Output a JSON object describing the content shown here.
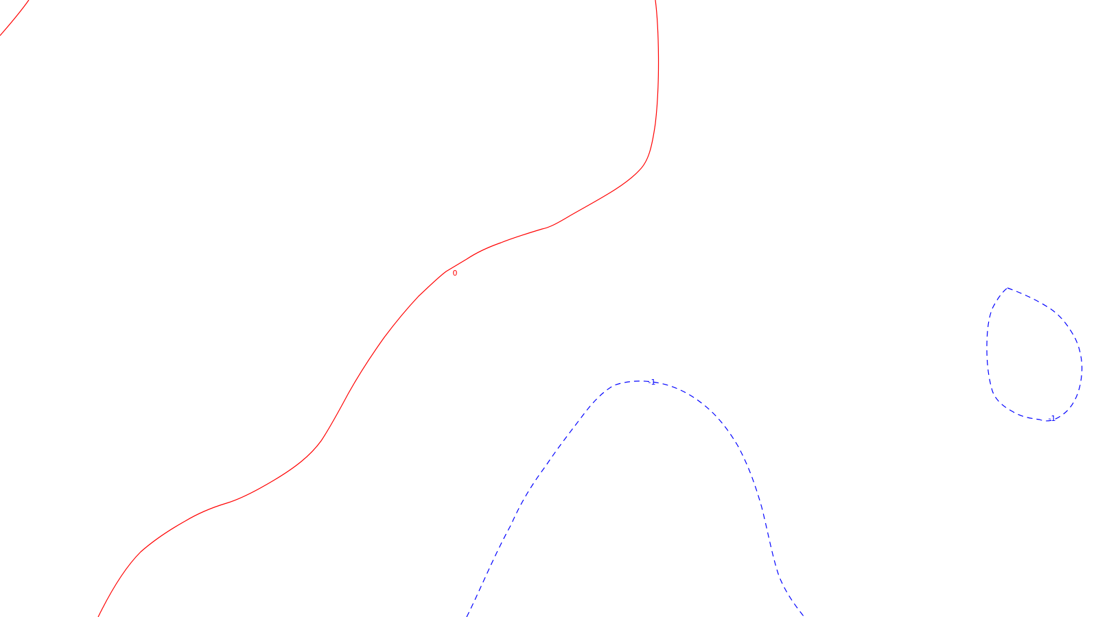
{
  "chart_data": {
    "type": "contour",
    "title": "",
    "xlabel": "",
    "ylabel": "",
    "grid": false,
    "legend": "none",
    "contours": [
      {
        "level": 0,
        "label": "0",
        "color": "#ff0000",
        "line_style": "solid"
      },
      {
        "level": -1,
        "label": "-1",
        "color": "#0000ff",
        "line_style": "dashed"
      }
    ]
  }
}
